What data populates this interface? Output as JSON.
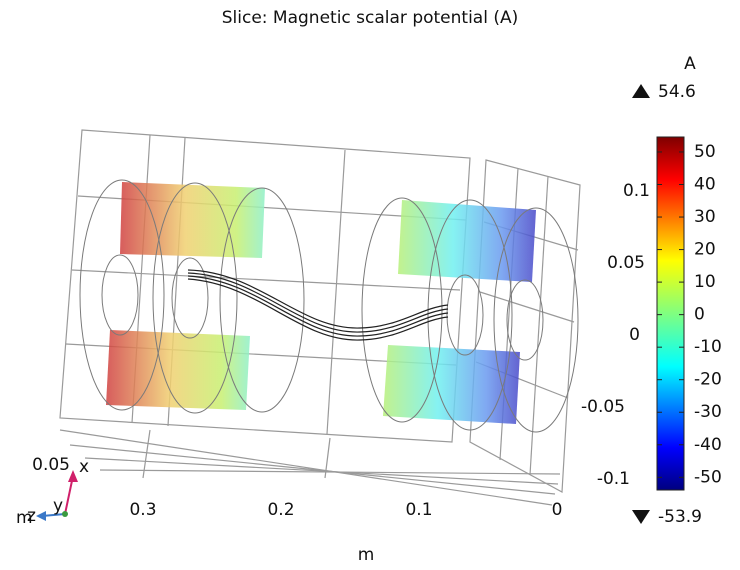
{
  "chart_data": {
    "type": "slice3d",
    "title": "Slice: Magnetic scalar potential (A)",
    "axis_label": "m",
    "colorbar": {
      "label": "A",
      "max": 54.6,
      "min": -53.9,
      "ticks": [
        50,
        40,
        30,
        20,
        10,
        0,
        -10,
        -20,
        -30,
        -40,
        -50
      ]
    },
    "yticks": [
      0.1,
      0.05,
      0,
      -0.05,
      -0.1
    ],
    "zticks": [
      0.3,
      0.2,
      0.1,
      0
    ],
    "xticks": [
      0.05
    ],
    "triad": {
      "x": "x",
      "y": "y",
      "z": "z",
      "unit": "m"
    }
  }
}
